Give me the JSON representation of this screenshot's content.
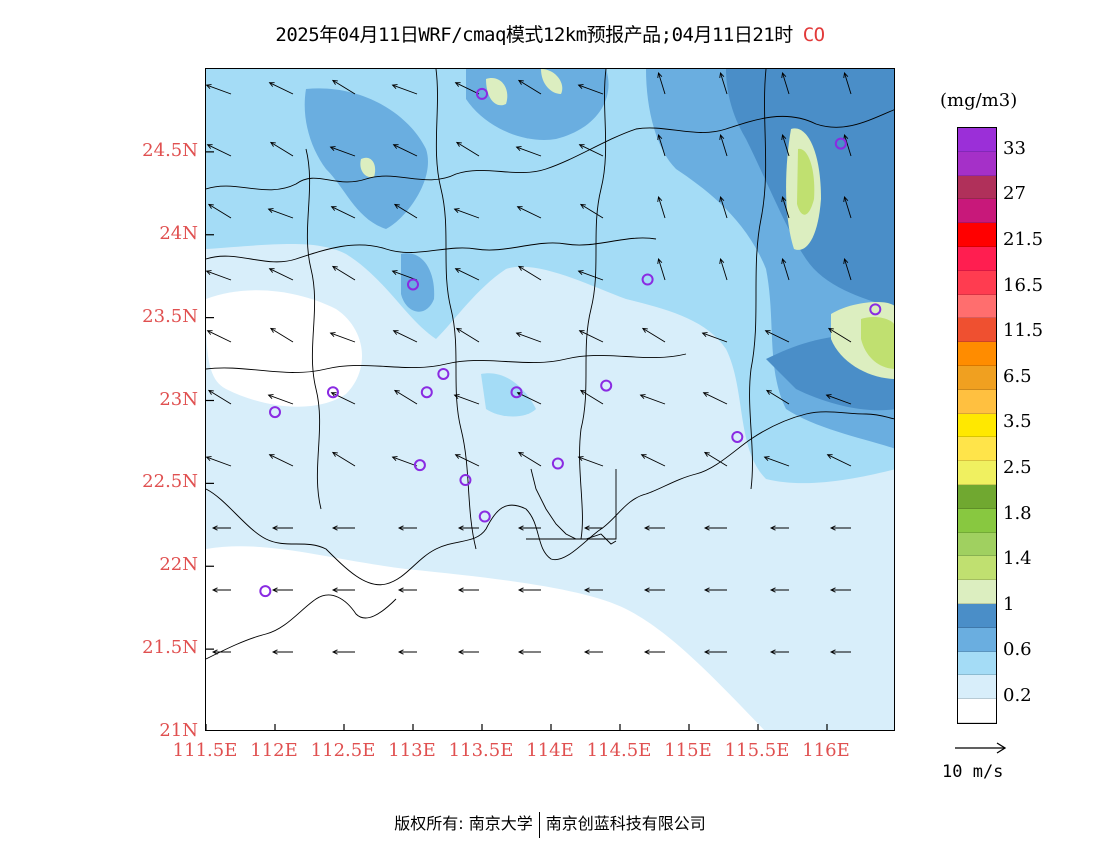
{
  "title": {
    "text": "2025年04月11日WRF/cmaq模式12km预报产品;04月11日21时",
    "species": "CO"
  },
  "axes": {
    "lat_labels": [
      "24.5N",
      "24N",
      "23.5N",
      "23N",
      "22.5N",
      "22N",
      "21.5N",
      "21N"
    ],
    "lat_values": [
      24.5,
      24.0,
      23.5,
      23.0,
      22.5,
      22.0,
      21.5,
      21.0
    ],
    "lon_labels": [
      "111.5E",
      "112E",
      "112.5E",
      "113E",
      "113.5E",
      "114E",
      "114.5E",
      "115E",
      "115.5E",
      "116E"
    ],
    "lon_values": [
      111.5,
      112.0,
      112.5,
      113.0,
      113.5,
      114.0,
      114.5,
      115.0,
      115.5,
      116.0
    ],
    "lat_range": [
      21.0,
      25.0
    ],
    "lon_range": [
      111.5,
      116.5
    ]
  },
  "colorbar": {
    "unit": "(mg/m3)",
    "tick_labels": [
      "33",
      "27",
      "21.5",
      "16.5",
      "11.5",
      "6.5",
      "3.5",
      "2.5",
      "1.8",
      "1.4",
      "1",
      "0.6",
      "0.2"
    ],
    "colors": [
      "#9b2fd8",
      "#a530c8",
      "#b0305a",
      "#c8187a",
      "#ff0000",
      "#ff1e50",
      "#ff3c50",
      "#ff6e6e",
      "#ef5030",
      "#ff8c00",
      "#f0a020",
      "#ffc040",
      "#ffe800",
      "#ffe44a",
      "#f0f060",
      "#70a830",
      "#88c840",
      "#a0d060",
      "#c0e070",
      "#dceec0",
      "#4a8ec8",
      "#6aaee0",
      "#a4dcf6",
      "#d8eefa",
      "#ffffff"
    ]
  },
  "wind_reference": {
    "label": "10 m/s"
  },
  "stations": [
    [
      113.5,
      24.85
    ],
    [
      113.0,
      23.7
    ],
    [
      116.1,
      24.55
    ],
    [
      114.7,
      23.73
    ],
    [
      116.35,
      23.55
    ],
    [
      112.0,
      22.93
    ],
    [
      112.42,
      23.05
    ],
    [
      113.1,
      23.05
    ],
    [
      113.22,
      23.16
    ],
    [
      113.75,
      23.05
    ],
    [
      114.4,
      23.09
    ],
    [
      115.35,
      22.78
    ],
    [
      113.05,
      22.61
    ],
    [
      113.38,
      22.52
    ],
    [
      114.05,
      22.62
    ],
    [
      113.52,
      22.3
    ],
    [
      111.93,
      21.85
    ]
  ],
  "copyright": {
    "left": "版权所有: 南京大学",
    "right": "南京创蓝科技有限公司"
  }
}
